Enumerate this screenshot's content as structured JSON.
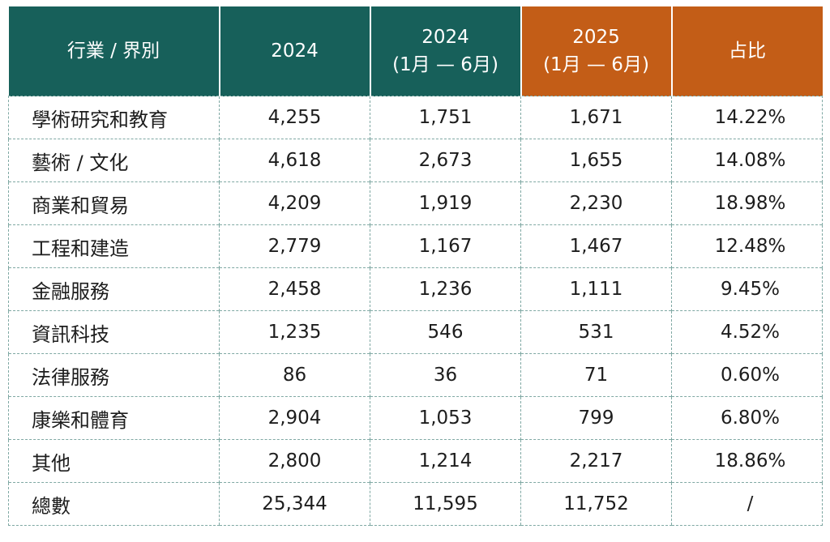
{
  "headers": {
    "industry": "行業 / 界別",
    "col_2024": "2024",
    "col_2024_h1_year": "2024",
    "col_2024_h1_range": "(1月 — 6月)",
    "col_2025_h1_year": "2025",
    "col_2025_h1_range": "(1月 — 6月)",
    "share": "占比"
  },
  "colors": {
    "teal": "#17605a",
    "orange": "#c35d17",
    "grid": "#7fa8a3"
  },
  "rows": [
    {
      "label": "學術研究和教育",
      "y2024": "4,255",
      "y2024h1": "1,751",
      "y2025h1": "1,671",
      "share": "14.22%"
    },
    {
      "label": "藝術 / 文化",
      "y2024": "4,618",
      "y2024h1": "2,673",
      "y2025h1": "1,655",
      "share": "14.08%"
    },
    {
      "label": "商業和貿易",
      "y2024": "4,209",
      "y2024h1": "1,919",
      "y2025h1": "2,230",
      "share": "18.98%"
    },
    {
      "label": "工程和建造",
      "y2024": "2,779",
      "y2024h1": "1,167",
      "y2025h1": "1,467",
      "share": "12.48%"
    },
    {
      "label": "金融服務",
      "y2024": "2,458",
      "y2024h1": "1,236",
      "y2025h1": "1,111",
      "share": "9.45%"
    },
    {
      "label": "資訊科技",
      "y2024": "1,235",
      "y2024h1": "546",
      "y2025h1": "531",
      "share": "4.52%"
    },
    {
      "label": "法律服務",
      "y2024": "86",
      "y2024h1": "36",
      "y2025h1": "71",
      "share": "0.60%"
    },
    {
      "label": "康樂和體育",
      "y2024": "2,904",
      "y2024h1": "1,053",
      "y2025h1": "799",
      "share": "6.80%"
    },
    {
      "label": "其他",
      "y2024": "2,800",
      "y2024h1": "1,214",
      "y2025h1": "2,217",
      "share": "18.86%"
    },
    {
      "label": "總數",
      "y2024": "25,344",
      "y2024h1": "11,595",
      "y2025h1": "11,752",
      "share": "/"
    }
  ]
}
